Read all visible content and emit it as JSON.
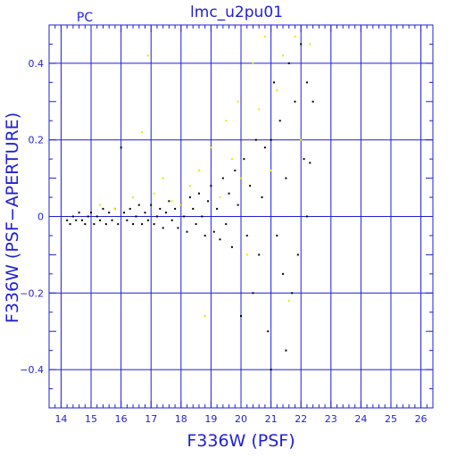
{
  "chart_data": {
    "type": "scatter",
    "title": "lmc_u2pu01",
    "corner_label": "PC",
    "xlabel": "F336W (PSF)",
    "ylabel": "F336W (PSF−APERTURE)",
    "xlim": [
      13.6,
      26.4
    ],
    "ylim": [
      -0.5,
      0.5
    ],
    "x_ticks": [
      14,
      15,
      16,
      17,
      18,
      19,
      20,
      21,
      22,
      23,
      24,
      25,
      26
    ],
    "y_ticks": [
      -0.4,
      -0.2,
      0,
      0.2,
      0.4
    ],
    "y_tick_labels": [
      "−0.4",
      "−0.2",
      "0",
      "0.2",
      "0.4"
    ],
    "grid": true,
    "colors": {
      "axis": "#1f1fd6",
      "series_black": "#000000",
      "series_yellow": "#e8e800"
    },
    "series": [
      {
        "color": "black",
        "points": [
          [
            14.2,
            -0.01
          ],
          [
            14.3,
            -0.02
          ],
          [
            14.4,
            0.0
          ],
          [
            14.5,
            -0.01
          ],
          [
            14.6,
            0.01
          ],
          [
            14.7,
            -0.01
          ],
          [
            14.8,
            -0.02
          ],
          [
            14.9,
            0.0
          ],
          [
            15.0,
            0.01
          ],
          [
            15.1,
            -0.02
          ],
          [
            15.2,
            0.0
          ],
          [
            15.3,
            -0.01
          ],
          [
            15.4,
            0.02
          ],
          [
            15.5,
            -0.02
          ],
          [
            15.6,
            0.01
          ],
          [
            15.7,
            -0.01
          ],
          [
            15.8,
            0.02
          ],
          [
            15.9,
            -0.02
          ],
          [
            16.0,
            0.18
          ],
          [
            16.1,
            0.01
          ],
          [
            16.2,
            -0.01
          ],
          [
            16.3,
            0.02
          ],
          [
            16.4,
            -0.02
          ],
          [
            16.5,
            0.0
          ],
          [
            16.6,
            0.03
          ],
          [
            16.7,
            -0.02
          ],
          [
            16.8,
            0.01
          ],
          [
            16.9,
            -0.01
          ],
          [
            17.0,
            0.03
          ],
          [
            17.1,
            -0.02
          ],
          [
            17.2,
            0.0
          ],
          [
            17.3,
            0.02
          ],
          [
            17.4,
            -0.03
          ],
          [
            17.5,
            0.01
          ],
          [
            17.6,
            0.04
          ],
          [
            17.7,
            -0.01
          ],
          [
            17.8,
            0.02
          ],
          [
            17.9,
            -0.03
          ],
          [
            18.0,
            0.03
          ],
          [
            18.1,
            0.0
          ],
          [
            18.2,
            -0.04
          ],
          [
            18.3,
            0.05
          ],
          [
            18.4,
            0.02
          ],
          [
            18.5,
            -0.02
          ],
          [
            18.6,
            0.06
          ],
          [
            18.7,
            0.0
          ],
          [
            18.8,
            -0.05
          ],
          [
            18.9,
            0.04
          ],
          [
            19.0,
            0.08
          ],
          [
            19.1,
            -0.04
          ],
          [
            19.2,
            0.02
          ],
          [
            19.3,
            -0.06
          ],
          [
            19.4,
            0.1
          ],
          [
            19.5,
            -0.02
          ],
          [
            19.6,
            0.06
          ],
          [
            19.7,
            -0.08
          ],
          [
            19.8,
            0.12
          ],
          [
            19.9,
            0.03
          ],
          [
            20.0,
            -0.26
          ],
          [
            20.1,
            0.15
          ],
          [
            20.2,
            -0.05
          ],
          [
            20.3,
            0.08
          ],
          [
            20.4,
            -0.2
          ],
          [
            20.5,
            0.2
          ],
          [
            20.6,
            -0.1
          ],
          [
            20.7,
            0.05
          ],
          [
            20.8,
            0.18
          ],
          [
            20.9,
            -0.3
          ],
          [
            21.0,
            0.2
          ],
          [
            21.0,
            -0.4
          ],
          [
            21.1,
            0.35
          ],
          [
            21.2,
            -0.05
          ],
          [
            21.3,
            0.25
          ],
          [
            21.4,
            -0.15
          ],
          [
            21.5,
            0.1
          ],
          [
            21.5,
            -0.35
          ],
          [
            21.6,
            0.4
          ],
          [
            21.7,
            -0.2
          ],
          [
            21.8,
            0.3
          ],
          [
            21.9,
            -0.1
          ],
          [
            22.0,
            0.45
          ],
          [
            22.1,
            0.15
          ],
          [
            22.2,
            0.35
          ],
          [
            22.3,
            0.14
          ],
          [
            22.4,
            0.3
          ],
          [
            22.2,
            0.0
          ]
        ]
      },
      {
        "color": "yellow",
        "points": [
          [
            15.3,
            0.03
          ],
          [
            15.8,
            0.02
          ],
          [
            16.4,
            0.05
          ],
          [
            16.7,
            0.22
          ],
          [
            16.9,
            0.42
          ],
          [
            17.1,
            0.06
          ],
          [
            17.4,
            0.1
          ],
          [
            17.7,
            0.04
          ],
          [
            18.0,
            0.03
          ],
          [
            18.3,
            0.08
          ],
          [
            18.6,
            0.12
          ],
          [
            18.8,
            -0.26
          ],
          [
            19.0,
            0.18
          ],
          [
            19.3,
            0.05
          ],
          [
            19.5,
            0.25
          ],
          [
            19.7,
            0.15
          ],
          [
            19.9,
            0.3
          ],
          [
            20.0,
            0.1
          ],
          [
            20.2,
            -0.1
          ],
          [
            20.4,
            0.4
          ],
          [
            20.6,
            0.28
          ],
          [
            20.8,
            0.47
          ],
          [
            21.0,
            0.12
          ],
          [
            21.2,
            0.33
          ],
          [
            21.4,
            0.42
          ],
          [
            21.6,
            -0.22
          ],
          [
            21.8,
            0.47
          ],
          [
            22.0,
            0.2
          ],
          [
            22.3,
            0.45
          ]
        ]
      }
    ]
  }
}
